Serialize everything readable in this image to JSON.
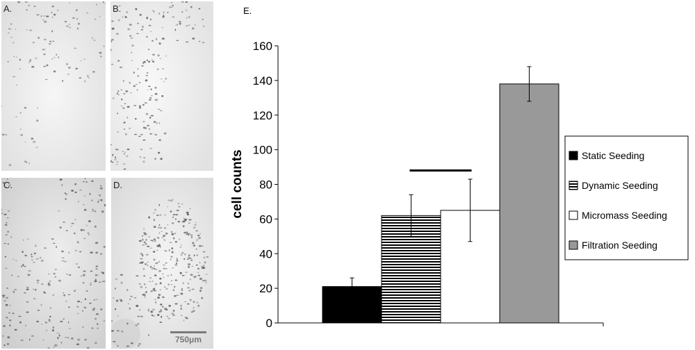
{
  "panels": [
    {
      "label": "A."
    },
    {
      "label": "B."
    },
    {
      "label": "C."
    },
    {
      "label": "D.",
      "scale_bar": "750μm"
    }
  ],
  "chart_data": {
    "panel_label": "E.",
    "type": "bar",
    "ylabel": "cell counts",
    "ylim": [
      0,
      160
    ],
    "yticks": [
      "0",
      "20",
      "40",
      "60",
      "80",
      "100",
      "120",
      "140",
      "160"
    ],
    "legend_position": "right",
    "grid": false,
    "series": [
      {
        "name": "Static Seeding",
        "value": 21,
        "error": 5,
        "fill": "solid-black"
      },
      {
        "name": "Dynamic Seeding",
        "value": 62,
        "error": 12,
        "fill": "horizontal-stripes"
      },
      {
        "name": "Micromass Seeding",
        "value": 65,
        "error": 18,
        "fill": "white"
      },
      {
        "name": "Filtration Seeding",
        "value": 138,
        "error": 10,
        "fill": "gray"
      }
    ],
    "significance_bar": {
      "from_series": 1,
      "to_series": 2,
      "value": 88
    },
    "colors": {
      "static": "#000000",
      "filtration": "#999999",
      "stripe": "#000000"
    }
  }
}
